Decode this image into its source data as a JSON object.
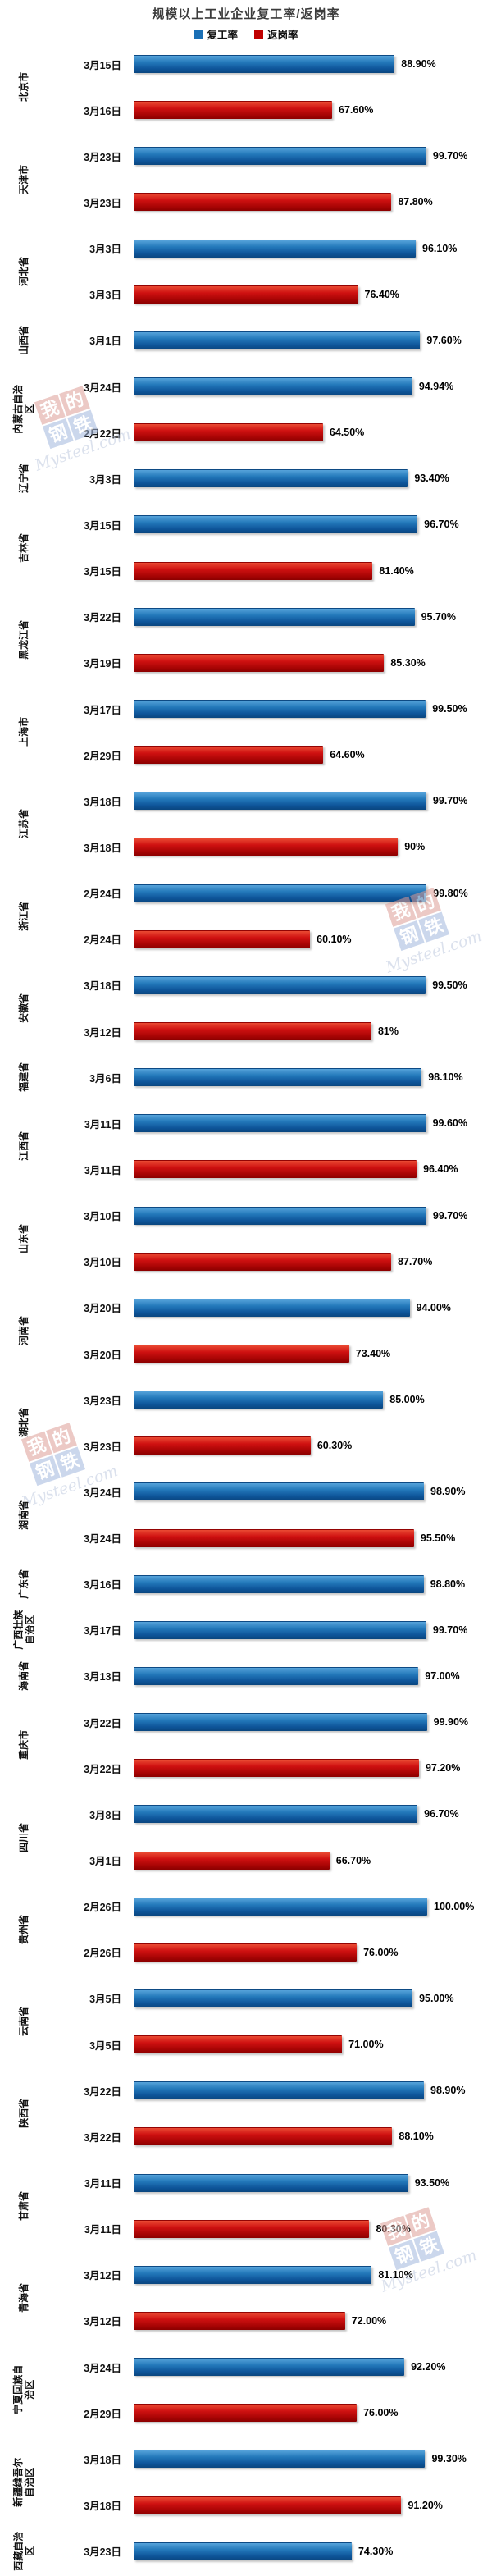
{
  "chart_data": {
    "type": "bar",
    "orientation": "horizontal",
    "title": "规模以上工业企业复工率/返岗率",
    "legend_position": "top",
    "grid": false,
    "xlim": [
      0,
      100
    ],
    "unit": "%",
    "legend": [
      {
        "label": "复工率",
        "color": "#1A6FB5"
      },
      {
        "label": "返岗率",
        "color": "#C00000"
      }
    ],
    "groups": [
      {
        "province": "北京市",
        "bars": [
          {
            "series": "复工率",
            "date": "3月15日",
            "value": 88.9,
            "label": "88.90%"
          },
          {
            "series": "返岗率",
            "date": "3月16日",
            "value": 67.6,
            "label": "67.60%"
          }
        ]
      },
      {
        "province": "天津市",
        "bars": [
          {
            "series": "复工率",
            "date": "3月23日",
            "value": 99.7,
            "label": "99.70%"
          },
          {
            "series": "返岗率",
            "date": "3月23日",
            "value": 87.8,
            "label": "87.80%"
          }
        ]
      },
      {
        "province": "河北省",
        "bars": [
          {
            "series": "复工率",
            "date": "3月3日",
            "value": 96.1,
            "label": "96.10%"
          },
          {
            "series": "返岗率",
            "date": "3月3日",
            "value": 76.4,
            "label": "76.40%"
          }
        ]
      },
      {
        "province": "山西省",
        "bars": [
          {
            "series": "复工率",
            "date": "3月1日",
            "value": 97.6,
            "label": "97.60%"
          }
        ]
      },
      {
        "province": "内蒙古自治区",
        "bars": [
          {
            "series": "复工率",
            "date": "3月24日",
            "value": 94.94,
            "label": "94.94%"
          },
          {
            "series": "返岗率",
            "date": "2月22日",
            "value": 64.5,
            "label": "64.50%"
          }
        ]
      },
      {
        "province": "辽宁省",
        "bars": [
          {
            "series": "复工率",
            "date": "3月3日",
            "value": 93.4,
            "label": "93.40%"
          }
        ]
      },
      {
        "province": "吉林省",
        "bars": [
          {
            "series": "复工率",
            "date": "3月15日",
            "value": 96.7,
            "label": "96.70%"
          },
          {
            "series": "返岗率",
            "date": "3月15日",
            "value": 81.4,
            "label": "81.40%"
          }
        ]
      },
      {
        "province": "黑龙江省",
        "bars": [
          {
            "series": "复工率",
            "date": "3月22日",
            "value": 95.7,
            "label": "95.70%"
          },
          {
            "series": "返岗率",
            "date": "3月19日",
            "value": 85.3,
            "label": "85.30%"
          }
        ]
      },
      {
        "province": "上海市",
        "bars": [
          {
            "series": "复工率",
            "date": "3月17日",
            "value": 99.5,
            "label": "99.50%"
          },
          {
            "series": "返岗率",
            "date": "2月29日",
            "value": 64.6,
            "label": "64.60%"
          }
        ]
      },
      {
        "province": "江苏省",
        "bars": [
          {
            "series": "复工率",
            "date": "3月18日",
            "value": 99.7,
            "label": "99.70%"
          },
          {
            "series": "返岗率",
            "date": "3月18日",
            "value": 90,
            "label": "90%"
          }
        ]
      },
      {
        "province": "浙江省",
        "bars": [
          {
            "series": "复工率",
            "date": "2月24日",
            "value": 99.8,
            "label": "99.80%"
          },
          {
            "series": "返岗率",
            "date": "2月24日",
            "value": 60.1,
            "label": "60.10%"
          }
        ]
      },
      {
        "province": "安徽省",
        "bars": [
          {
            "series": "复工率",
            "date": "3月18日",
            "value": 99.5,
            "label": "99.50%"
          },
          {
            "series": "返岗率",
            "date": "3月12日",
            "value": 81,
            "label": "81%"
          }
        ]
      },
      {
        "province": "福建省",
        "bars": [
          {
            "series": "复工率",
            "date": "3月6日",
            "value": 98.1,
            "label": "98.10%"
          }
        ]
      },
      {
        "province": "江西省",
        "bars": [
          {
            "series": "复工率",
            "date": "3月11日",
            "value": 99.6,
            "label": "99.60%"
          },
          {
            "series": "返岗率",
            "date": "3月11日",
            "value": 96.4,
            "label": "96.40%"
          }
        ]
      },
      {
        "province": "山东省",
        "bars": [
          {
            "series": "复工率",
            "date": "3月10日",
            "value": 99.7,
            "label": "99.70%"
          },
          {
            "series": "返岗率",
            "date": "3月10日",
            "value": 87.7,
            "label": "87.70%"
          }
        ]
      },
      {
        "province": "河南省",
        "bars": [
          {
            "series": "复工率",
            "date": "3月20日",
            "value": 94.0,
            "label": "94.00%"
          },
          {
            "series": "返岗率",
            "date": "3月20日",
            "value": 73.4,
            "label": "73.40%"
          }
        ]
      },
      {
        "province": "湖北省",
        "bars": [
          {
            "series": "复工率",
            "date": "3月23日",
            "value": 85.0,
            "label": "85.00%"
          },
          {
            "series": "返岗率",
            "date": "3月23日",
            "value": 60.3,
            "label": "60.30%"
          }
        ]
      },
      {
        "province": "湖南省",
        "bars": [
          {
            "series": "复工率",
            "date": "3月24日",
            "value": 98.9,
            "label": "98.90%"
          },
          {
            "series": "返岗率",
            "date": "3月24日",
            "value": 95.5,
            "label": "95.50%"
          }
        ]
      },
      {
        "province": "广东省",
        "bars": [
          {
            "series": "复工率",
            "date": "3月16日",
            "value": 98.8,
            "label": "98.80%"
          }
        ]
      },
      {
        "province": "广西壮族自治区",
        "bars": [
          {
            "series": "复工率",
            "date": "3月17日",
            "value": 99.7,
            "label": "99.70%"
          }
        ]
      },
      {
        "province": "海南省",
        "bars": [
          {
            "series": "复工率",
            "date": "3月13日",
            "value": 97.0,
            "label": "97.00%"
          }
        ]
      },
      {
        "province": "重庆市",
        "bars": [
          {
            "series": "复工率",
            "date": "3月22日",
            "value": 99.9,
            "label": "99.90%"
          },
          {
            "series": "返岗率",
            "date": "3月22日",
            "value": 97.2,
            "label": "97.20%"
          }
        ]
      },
      {
        "province": "四川省",
        "bars": [
          {
            "series": "复工率",
            "date": "3月8日",
            "value": 96.7,
            "label": "96.70%"
          },
          {
            "series": "返岗率",
            "date": "3月1日",
            "value": 66.7,
            "label": "66.70%"
          }
        ]
      },
      {
        "province": "贵州省",
        "bars": [
          {
            "series": "复工率",
            "date": "2月26日",
            "value": 100.0,
            "label": "100.00%"
          },
          {
            "series": "返岗率",
            "date": "2月26日",
            "value": 76.0,
            "label": "76.00%"
          }
        ]
      },
      {
        "province": "云南省",
        "bars": [
          {
            "series": "复工率",
            "date": "3月5日",
            "value": 95.0,
            "label": "95.00%"
          },
          {
            "series": "返岗率",
            "date": "3月5日",
            "value": 71.0,
            "label": "71.00%"
          }
        ]
      },
      {
        "province": "陕西省",
        "bars": [
          {
            "series": "复工率",
            "date": "3月22日",
            "value": 98.9,
            "label": "98.90%"
          },
          {
            "series": "返岗率",
            "date": "3月22日",
            "value": 88.1,
            "label": "88.10%"
          }
        ]
      },
      {
        "province": "甘肃省",
        "bars": [
          {
            "series": "复工率",
            "date": "3月11日",
            "value": 93.5,
            "label": "93.50%"
          },
          {
            "series": "返岗率",
            "date": "3月11日",
            "value": 80.3,
            "label": "80.30%"
          }
        ]
      },
      {
        "province": "青海省",
        "bars": [
          {
            "series": "复工率",
            "date": "3月12日",
            "value": 81.1,
            "label": "81.10%"
          },
          {
            "series": "返岗率",
            "date": "3月12日",
            "value": 72.0,
            "label": "72.00%"
          }
        ]
      },
      {
        "province": "宁夏回族自治区",
        "bars": [
          {
            "series": "复工率",
            "date": "3月24日",
            "value": 92.2,
            "label": "92.20%"
          },
          {
            "series": "返岗率",
            "date": "2月29日",
            "value": 76.0,
            "label": "76.00%"
          }
        ]
      },
      {
        "province": "新疆维吾尔自治区",
        "bars": [
          {
            "series": "复工率",
            "date": "3月18日",
            "value": 99.3,
            "label": "99.30%"
          },
          {
            "series": "返岗率",
            "date": "3月18日",
            "value": 91.2,
            "label": "91.20%"
          }
        ]
      },
      {
        "province": "西藏自治区",
        "bars": [
          {
            "series": "复工率",
            "date": "3月23日",
            "value": 74.3,
            "label": "74.30%"
          }
        ]
      }
    ]
  },
  "watermark": {
    "chars": [
      "我",
      "的",
      "钢",
      "铁"
    ],
    "text": "Mysteel.com"
  }
}
